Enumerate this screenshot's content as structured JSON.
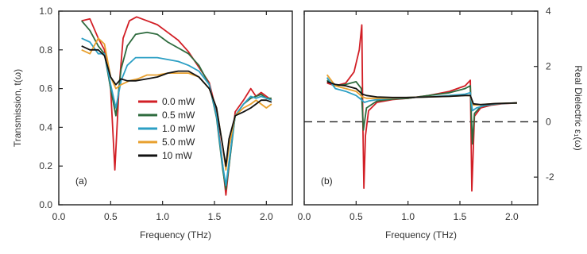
{
  "chart_data": [
    {
      "type": "line",
      "panel_label": "(a)",
      "xlabel": "Frequency (THz)",
      "ylabel": "Transmission, t(ω)",
      "xlim": [
        0.0,
        2.25
      ],
      "ylim": [
        0.0,
        1.0
      ],
      "xticks": [
        "0.0",
        "0.5",
        "1.0",
        "1.5",
        "2.0"
      ],
      "yticks": [
        "0.0",
        "0.2",
        "0.4",
        "0.6",
        "0.8",
        "1.0"
      ],
      "legend_position": "lower-middle",
      "grid": false,
      "series": [
        {
          "name": "0.0 mW",
          "color": "#d21f26",
          "points": [
            [
              0.22,
              0.95
            ],
            [
              0.3,
              0.96
            ],
            [
              0.38,
              0.86
            ],
            [
              0.44,
              0.8
            ],
            [
              0.5,
              0.6
            ],
            [
              0.54,
              0.18
            ],
            [
              0.58,
              0.6
            ],
            [
              0.62,
              0.86
            ],
            [
              0.68,
              0.95
            ],
            [
              0.75,
              0.97
            ],
            [
              0.85,
              0.95
            ],
            [
              0.95,
              0.93
            ],
            [
              1.05,
              0.89
            ],
            [
              1.15,
              0.85
            ],
            [
              1.25,
              0.79
            ],
            [
              1.35,
              0.71
            ],
            [
              1.45,
              0.63
            ],
            [
              1.52,
              0.48
            ],
            [
              1.58,
              0.2
            ],
            [
              1.61,
              0.05
            ],
            [
              1.64,
              0.2
            ],
            [
              1.7,
              0.48
            ],
            [
              1.78,
              0.54
            ],
            [
              1.85,
              0.6
            ],
            [
              1.9,
              0.56
            ],
            [
              1.95,
              0.58
            ],
            [
              2.0,
              0.56
            ],
            [
              2.05,
              0.54
            ]
          ]
        },
        {
          "name": "0.5 mW",
          "color": "#2e6b3e",
          "points": [
            [
              0.22,
              0.95
            ],
            [
              0.3,
              0.9
            ],
            [
              0.38,
              0.82
            ],
            [
              0.44,
              0.78
            ],
            [
              0.5,
              0.6
            ],
            [
              0.55,
              0.46
            ],
            [
              0.6,
              0.7
            ],
            [
              0.66,
              0.82
            ],
            [
              0.74,
              0.88
            ],
            [
              0.85,
              0.89
            ],
            [
              0.95,
              0.88
            ],
            [
              1.05,
              0.84
            ],
            [
              1.15,
              0.81
            ],
            [
              1.25,
              0.78
            ],
            [
              1.35,
              0.72
            ],
            [
              1.45,
              0.62
            ],
            [
              1.52,
              0.45
            ],
            [
              1.58,
              0.18
            ],
            [
              1.61,
              0.08
            ],
            [
              1.64,
              0.2
            ],
            [
              1.7,
              0.46
            ],
            [
              1.78,
              0.52
            ],
            [
              1.85,
              0.55
            ],
            [
              1.9,
              0.56
            ],
            [
              1.95,
              0.57
            ],
            [
              2.0,
              0.55
            ],
            [
              2.05,
              0.55
            ]
          ]
        },
        {
          "name": "1.0 mW",
          "color": "#2c9fc4",
          "points": [
            [
              0.22,
              0.86
            ],
            [
              0.3,
              0.84
            ],
            [
              0.38,
              0.78
            ],
            [
              0.44,
              0.78
            ],
            [
              0.5,
              0.62
            ],
            [
              0.55,
              0.5
            ],
            [
              0.6,
              0.64
            ],
            [
              0.66,
              0.72
            ],
            [
              0.74,
              0.76
            ],
            [
              0.85,
              0.76
            ],
            [
              0.95,
              0.76
            ],
            [
              1.05,
              0.75
            ],
            [
              1.15,
              0.74
            ],
            [
              1.25,
              0.72
            ],
            [
              1.35,
              0.69
            ],
            [
              1.45,
              0.62
            ],
            [
              1.52,
              0.46
            ],
            [
              1.58,
              0.2
            ],
            [
              1.61,
              0.1
            ],
            [
              1.64,
              0.22
            ],
            [
              1.7,
              0.46
            ],
            [
              1.78,
              0.52
            ],
            [
              1.85,
              0.56
            ],
            [
              1.9,
              0.55
            ],
            [
              1.95,
              0.56
            ],
            [
              2.0,
              0.55
            ],
            [
              2.05,
              0.54
            ]
          ]
        },
        {
          "name": "5.0 mW",
          "color": "#e8a02e",
          "points": [
            [
              0.22,
              0.8
            ],
            [
              0.3,
              0.78
            ],
            [
              0.38,
              0.86
            ],
            [
              0.44,
              0.83
            ],
            [
              0.5,
              0.66
            ],
            [
              0.55,
              0.6
            ],
            [
              0.6,
              0.62
            ],
            [
              0.68,
              0.64
            ],
            [
              0.76,
              0.65
            ],
            [
              0.85,
              0.67
            ],
            [
              0.95,
              0.67
            ],
            [
              1.05,
              0.68
            ],
            [
              1.15,
              0.68
            ],
            [
              1.25,
              0.68
            ],
            [
              1.35,
              0.66
            ],
            [
              1.45,
              0.6
            ],
            [
              1.52,
              0.5
            ],
            [
              1.58,
              0.3
            ],
            [
              1.61,
              0.18
            ],
            [
              1.64,
              0.3
            ],
            [
              1.7,
              0.46
            ],
            [
              1.78,
              0.5
            ],
            [
              1.85,
              0.52
            ],
            [
              1.9,
              0.54
            ],
            [
              1.95,
              0.52
            ],
            [
              2.0,
              0.5
            ],
            [
              2.05,
              0.52
            ]
          ]
        },
        {
          "name": "10 mW",
          "color": "#111111",
          "points": [
            [
              0.22,
              0.82
            ],
            [
              0.3,
              0.8
            ],
            [
              0.38,
              0.8
            ],
            [
              0.44,
              0.77
            ],
            [
              0.5,
              0.66
            ],
            [
              0.55,
              0.62
            ],
            [
              0.6,
              0.65
            ],
            [
              0.66,
              0.64
            ],
            [
              0.74,
              0.64
            ],
            [
              0.85,
              0.65
            ],
            [
              0.95,
              0.66
            ],
            [
              1.05,
              0.68
            ],
            [
              1.15,
              0.69
            ],
            [
              1.25,
              0.69
            ],
            [
              1.35,
              0.66
            ],
            [
              1.45,
              0.6
            ],
            [
              1.52,
              0.5
            ],
            [
              1.58,
              0.3
            ],
            [
              1.61,
              0.2
            ],
            [
              1.64,
              0.34
            ],
            [
              1.7,
              0.46
            ],
            [
              1.78,
              0.48
            ],
            [
              1.85,
              0.5
            ],
            [
              1.9,
              0.52
            ],
            [
              1.95,
              0.54
            ],
            [
              2.0,
              0.54
            ],
            [
              2.05,
              0.53
            ]
          ]
        }
      ]
    },
    {
      "type": "line",
      "panel_label": "(b)",
      "xlabel": "Frequency (THz)",
      "ylabel": "Real Dielectric ε₁(ω)",
      "xlim": [
        0.0,
        2.25
      ],
      "ylim": [
        -3.0,
        4.0
      ],
      "xticks": [
        "0.0",
        "0.5",
        "1.0",
        "1.5",
        "2.0"
      ],
      "yticks": [
        "-2",
        "0",
        "2",
        "4"
      ],
      "reference_line_y": 0,
      "grid": false,
      "series": [
        {
          "name": "0.0 mW",
          "color": "#d21f26",
          "points": [
            [
              0.22,
              1.4
            ],
            [
              0.3,
              1.3
            ],
            [
              0.4,
              1.4
            ],
            [
              0.48,
              1.8
            ],
            [
              0.53,
              2.6
            ],
            [
              0.555,
              3.5
            ],
            [
              0.565,
              0.0
            ],
            [
              0.575,
              -2.4
            ],
            [
              0.59,
              -0.5
            ],
            [
              0.62,
              0.4
            ],
            [
              0.7,
              0.7
            ],
            [
              0.85,
              0.8
            ],
            [
              1.0,
              0.85
            ],
            [
              1.2,
              0.95
            ],
            [
              1.4,
              1.1
            ],
            [
              1.55,
              1.3
            ],
            [
              1.6,
              1.5
            ],
            [
              1.615,
              -2.5
            ],
            [
              1.64,
              0.2
            ],
            [
              1.7,
              0.5
            ],
            [
              1.8,
              0.6
            ],
            [
              1.9,
              0.65
            ],
            [
              2.05,
              0.68
            ]
          ]
        },
        {
          "name": "0.5 mW",
          "color": "#2e6b3e",
          "points": [
            [
              0.22,
              1.5
            ],
            [
              0.3,
              1.3
            ],
            [
              0.4,
              1.35
            ],
            [
              0.5,
              1.45
            ],
            [
              0.55,
              1.2
            ],
            [
              0.57,
              -0.3
            ],
            [
              0.6,
              0.5
            ],
            [
              0.7,
              0.75
            ],
            [
              0.85,
              0.82
            ],
            [
              1.0,
              0.85
            ],
            [
              1.2,
              0.95
            ],
            [
              1.4,
              1.05
            ],
            [
              1.55,
              1.2
            ],
            [
              1.6,
              1.3
            ],
            [
              1.62,
              -0.8
            ],
            [
              1.64,
              0.3
            ],
            [
              1.7,
              0.55
            ],
            [
              1.8,
              0.62
            ],
            [
              1.9,
              0.66
            ],
            [
              2.05,
              0.68
            ]
          ]
        },
        {
          "name": "1.0 mW",
          "color": "#2c9fc4",
          "points": [
            [
              0.22,
              1.6
            ],
            [
              0.3,
              1.2
            ],
            [
              0.4,
              1.1
            ],
            [
              0.5,
              0.95
            ],
            [
              0.55,
              0.8
            ],
            [
              0.58,
              0.7
            ],
            [
              0.62,
              0.75
            ],
            [
              0.7,
              0.8
            ],
            [
              0.85,
              0.85
            ],
            [
              1.0,
              0.88
            ],
            [
              1.2,
              0.9
            ],
            [
              1.4,
              0.95
            ],
            [
              1.55,
              1.0
            ],
            [
              1.6,
              1.05
            ],
            [
              1.62,
              0.4
            ],
            [
              1.66,
              0.5
            ],
            [
              1.75,
              0.6
            ],
            [
              1.85,
              0.65
            ],
            [
              2.05,
              0.68
            ]
          ]
        },
        {
          "name": "5.0 mW",
          "color": "#e8a02e",
          "points": [
            [
              0.22,
              1.7
            ],
            [
              0.3,
              1.3
            ],
            [
              0.4,
              1.2
            ],
            [
              0.5,
              1.1
            ],
            [
              0.56,
              0.9
            ],
            [
              0.6,
              0.85
            ],
            [
              0.7,
              0.85
            ],
            [
              0.85,
              0.86
            ],
            [
              1.0,
              0.88
            ],
            [
              1.2,
              0.9
            ],
            [
              1.4,
              0.92
            ],
            [
              1.55,
              0.95
            ],
            [
              1.6,
              0.95
            ],
            [
              1.63,
              0.6
            ],
            [
              1.7,
              0.62
            ],
            [
              1.85,
              0.66
            ],
            [
              2.05,
              0.68
            ]
          ]
        },
        {
          "name": "10 mW",
          "color": "#111111",
          "points": [
            [
              0.22,
              1.45
            ],
            [
              0.3,
              1.35
            ],
            [
              0.4,
              1.3
            ],
            [
              0.5,
              1.2
            ],
            [
              0.56,
              1.0
            ],
            [
              0.6,
              0.95
            ],
            [
              0.7,
              0.9
            ],
            [
              0.85,
              0.88
            ],
            [
              1.0,
              0.88
            ],
            [
              1.2,
              0.9
            ],
            [
              1.4,
              0.92
            ],
            [
              1.55,
              0.95
            ],
            [
              1.6,
              0.95
            ],
            [
              1.63,
              0.65
            ],
            [
              1.7,
              0.62
            ],
            [
              1.85,
              0.66
            ],
            [
              2.05,
              0.68
            ]
          ]
        }
      ]
    }
  ]
}
